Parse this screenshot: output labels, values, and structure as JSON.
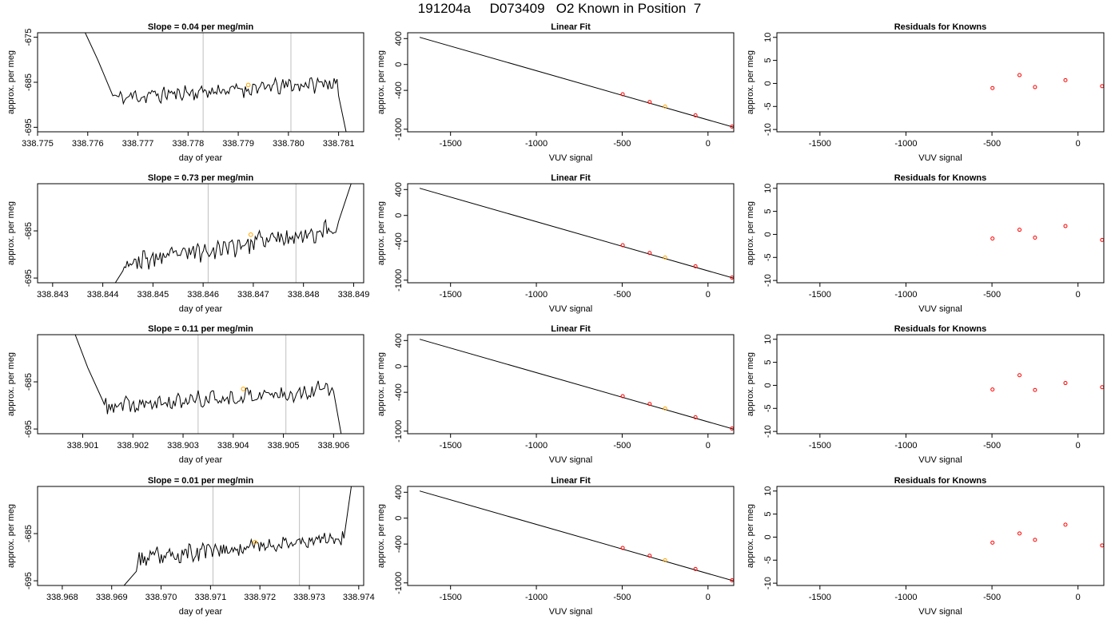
{
  "header": {
    "title": "191204a     D073409   O2 Known in Position  7"
  },
  "colors": {
    "trace": "#000000",
    "marker_orange": "#ffa500",
    "marker_red": "#ff0000",
    "vertical_line": "#bebebe"
  },
  "chart_data": [
    {
      "type": "line",
      "panel": "time-series",
      "row": 1,
      "title": "Slope =  0.04  per meg/min",
      "xlabel": "day of year",
      "ylabel": "approx. per meg",
      "xlim": [
        338.775,
        338.7815
      ],
      "ylim": [
        -696,
        -674
      ],
      "x_ticks": [
        "338.775",
        "338.776",
        "338.777",
        "338.778",
        "338.779",
        "338.780",
        "338.781"
      ],
      "y_ticks": [
        "-695",
        "-685",
        "-675"
      ],
      "trace_start": 338.77595,
      "trace_end": 338.78115,
      "entry": [
        [
          338.77595,
          -674
        ],
        [
          338.7762,
          -680
        ],
        [
          338.7765,
          -688
        ]
      ],
      "exit": [
        [
          338.781,
          -688
        ],
        [
          338.78115,
          -696
        ]
      ],
      "vlines": [
        338.7783,
        338.78005
      ],
      "marker": {
        "x": 338.7792,
        "y": -685.6,
        "color": "orange"
      },
      "trace_y_start": -688.5,
      "trace_y_end": -685.0,
      "trace_noise": 1.4,
      "trace_seed": 11
    },
    {
      "type": "line",
      "panel": "linear-fit",
      "row": 1,
      "title": "Linear Fit",
      "xlabel": "VUV signal",
      "ylabel": "approx. per meg",
      "xlim": [
        -1750,
        150
      ],
      "ylim": [
        -1040,
        490
      ],
      "x_ticks": [
        -1500,
        -1000,
        -500,
        0
      ],
      "y_ticks": [
        400,
        0,
        -400,
        -1000
      ],
      "line": [
        [
          -1680,
          420
        ],
        [
          150,
          -970
        ]
      ],
      "points": [
        [
          -497,
          -460,
          "red"
        ],
        [
          -340,
          -580,
          "red"
        ],
        [
          -250,
          -650,
          "orange"
        ],
        [
          -73,
          -785,
          "red"
        ],
        [
          140,
          -960,
          "red"
        ]
      ]
    },
    {
      "type": "scatter",
      "panel": "residuals",
      "row": 1,
      "title": "Residuals for Knowns",
      "xlabel": "VUV signal",
      "ylabel": "approx. per meg",
      "xlim": [
        -1750,
        150
      ],
      "ylim": [
        -10.5,
        11
      ],
      "x_ticks": [
        -1500,
        -1000,
        -500,
        0
      ],
      "y_ticks": [
        10,
        5,
        0,
        -5,
        -10
      ],
      "points": [
        [
          -497,
          -1.0
        ],
        [
          -340,
          1.8
        ],
        [
          -250,
          -0.8
        ],
        [
          -73,
          0.7
        ],
        [
          140,
          -0.6
        ]
      ]
    },
    {
      "type": "line",
      "panel": "time-series",
      "row": 2,
      "title": "Slope =  0.73  per meg/min",
      "xlabel": "day of year",
      "ylabel": "approx. per meg",
      "xlim": [
        338.8427,
        338.8492
      ],
      "ylim": [
        -696,
        -675
      ],
      "x_ticks": [
        "338.843",
        "338.844",
        "338.845",
        "338.846",
        "338.847",
        "338.848",
        "338.849"
      ],
      "y_ticks": [
        "-695",
        "-685"
      ],
      "trace_start": 338.84425,
      "trace_end": 338.84895,
      "entry": [
        [
          338.84425,
          -696
        ],
        [
          338.8444,
          -693.5
        ]
      ],
      "exit": [
        [
          338.8487,
          -683
        ],
        [
          338.84895,
          -675
        ]
      ],
      "vlines": [
        338.8461,
        338.84785
      ],
      "marker": {
        "x": 338.84695,
        "y": -685.8,
        "color": "orange"
      },
      "trace_y_start": -692.0,
      "trace_y_end": -684.5,
      "trace_noise": 1.7,
      "trace_seed": 23
    },
    {
      "type": "line",
      "panel": "linear-fit",
      "row": 2,
      "title": "Linear Fit",
      "xlabel": "VUV signal",
      "ylabel": "approx. per meg",
      "xlim": [
        -1750,
        150
      ],
      "ylim": [
        -1040,
        490
      ],
      "x_ticks": [
        -1500,
        -1000,
        -500,
        0
      ],
      "y_ticks": [
        400,
        0,
        -400,
        -1000
      ],
      "line": [
        [
          -1680,
          420
        ],
        [
          150,
          -970
        ]
      ],
      "points": [
        [
          -497,
          -460,
          "red"
        ],
        [
          -340,
          -580,
          "red"
        ],
        [
          -250,
          -650,
          "orange"
        ],
        [
          -73,
          -785,
          "red"
        ],
        [
          140,
          -960,
          "red"
        ]
      ]
    },
    {
      "type": "scatter",
      "panel": "residuals",
      "row": 2,
      "title": "Residuals for Knowns",
      "xlabel": "VUV signal",
      "ylabel": "approx. per meg",
      "xlim": [
        -1750,
        150
      ],
      "ylim": [
        -10.5,
        11
      ],
      "x_ticks": [
        -1500,
        -1000,
        -500,
        0
      ],
      "y_ticks": [
        10,
        5,
        0,
        -5,
        -10
      ],
      "points": [
        [
          -497,
          -0.9
        ],
        [
          -340,
          1.0
        ],
        [
          -250,
          -0.7
        ],
        [
          -73,
          1.8
        ],
        [
          140,
          -1.2
        ]
      ]
    },
    {
      "type": "line",
      "panel": "time-series",
      "row": 3,
      "title": "Slope =  0.11  per meg/min",
      "xlabel": "day of year",
      "ylabel": "approx. per meg",
      "xlim": [
        338.9001,
        338.9066
      ],
      "ylim": [
        -696,
        -675
      ],
      "x_ticks": [
        "338.901",
        "338.902",
        "338.903",
        "338.904",
        "338.905",
        "338.906"
      ],
      "y_ticks": [
        "-695",
        "-685"
      ],
      "trace_start": 338.90085,
      "trace_end": 338.90615,
      "entry": [
        [
          338.90085,
          -675
        ],
        [
          338.9011,
          -682
        ],
        [
          338.9014,
          -689
        ]
      ],
      "exit": [
        [
          338.906,
          -687
        ],
        [
          338.90615,
          -696
        ]
      ],
      "vlines": [
        338.9033,
        338.90505
      ],
      "marker": {
        "x": 338.9042,
        "y": -686.5,
        "color": "orange"
      },
      "trace_y_start": -690.5,
      "trace_y_end": -686.5,
      "trace_noise": 1.5,
      "trace_seed": 37
    },
    {
      "type": "line",
      "panel": "linear-fit",
      "row": 3,
      "title": "Linear Fit",
      "xlabel": "VUV signal",
      "ylabel": "approx. per meg",
      "xlim": [
        -1750,
        150
      ],
      "ylim": [
        -1040,
        490
      ],
      "x_ticks": [
        -1500,
        -1000,
        -500,
        0
      ],
      "y_ticks": [
        400,
        0,
        -400,
        -1000
      ],
      "line": [
        [
          -1680,
          420
        ],
        [
          150,
          -970
        ]
      ],
      "points": [
        [
          -497,
          -460,
          "red"
        ],
        [
          -340,
          -580,
          "red"
        ],
        [
          -250,
          -650,
          "orange"
        ],
        [
          -73,
          -785,
          "red"
        ],
        [
          140,
          -960,
          "red"
        ]
      ]
    },
    {
      "type": "scatter",
      "panel": "residuals",
      "row": 3,
      "title": "Residuals for Knowns",
      "xlabel": "VUV signal",
      "ylabel": "approx. per meg",
      "xlim": [
        -1750,
        150
      ],
      "ylim": [
        -10.5,
        11
      ],
      "x_ticks": [
        -1500,
        -1000,
        -500,
        0
      ],
      "y_ticks": [
        10,
        5,
        0,
        -5,
        -10
      ],
      "points": [
        [
          -497,
          -0.9
        ],
        [
          -340,
          2.2
        ],
        [
          -250,
          -1.0
        ],
        [
          -73,
          0.5
        ],
        [
          140,
          -0.4
        ]
      ]
    },
    {
      "type": "line",
      "panel": "time-series",
      "row": 4,
      "title": "Slope =  0.01  per meg/min",
      "xlabel": "day of year",
      "ylabel": "approx. per meg",
      "xlim": [
        338.9675,
        338.9741
      ],
      "ylim": [
        -696,
        -675
      ],
      "x_ticks": [
        "338.968",
        "338.969",
        "338.970",
        "338.971",
        "338.972",
        "338.973",
        "338.974"
      ],
      "y_ticks": [
        "-695",
        "-685"
      ],
      "trace_start": 338.96925,
      "trace_end": 338.97385,
      "entry": [
        [
          338.96925,
          -696
        ],
        [
          338.9695,
          -693
        ]
      ],
      "exit": [
        [
          338.9737,
          -686
        ],
        [
          338.97385,
          -675
        ]
      ],
      "vlines": [
        338.97105,
        338.9728
      ],
      "marker": {
        "x": 338.9719,
        "y": -686.8,
        "color": "orange"
      },
      "trace_y_start": -690.5,
      "trace_y_end": -685.5,
      "trace_noise": 1.5,
      "trace_seed": 53
    },
    {
      "type": "line",
      "panel": "linear-fit",
      "row": 4,
      "title": "Linear Fit",
      "xlabel": "VUV signal",
      "ylabel": "approx. per meg",
      "xlim": [
        -1750,
        150
      ],
      "ylim": [
        -1040,
        490
      ],
      "x_ticks": [
        -1500,
        -1000,
        -500,
        0
      ],
      "y_ticks": [
        400,
        0,
        -400,
        -1000
      ],
      "line": [
        [
          -1680,
          420
        ],
        [
          150,
          -970
        ]
      ],
      "points": [
        [
          -497,
          -460,
          "red"
        ],
        [
          -340,
          -580,
          "red"
        ],
        [
          -250,
          -650,
          "orange"
        ],
        [
          -73,
          -785,
          "red"
        ],
        [
          140,
          -960,
          "red"
        ]
      ]
    },
    {
      "type": "scatter",
      "panel": "residuals",
      "row": 4,
      "title": "Residuals for Knowns",
      "xlabel": "VUV signal",
      "ylabel": "approx. per meg",
      "xlim": [
        -1750,
        150
      ],
      "ylim": [
        -10.5,
        11
      ],
      "x_ticks": [
        -1500,
        -1000,
        -500,
        0
      ],
      "y_ticks": [
        10,
        5,
        0,
        -5,
        -10
      ],
      "points": [
        [
          -497,
          -1.2
        ],
        [
          -340,
          0.8
        ],
        [
          -250,
          -0.6
        ],
        [
          -73,
          2.7
        ],
        [
          140,
          -1.8
        ]
      ]
    }
  ]
}
